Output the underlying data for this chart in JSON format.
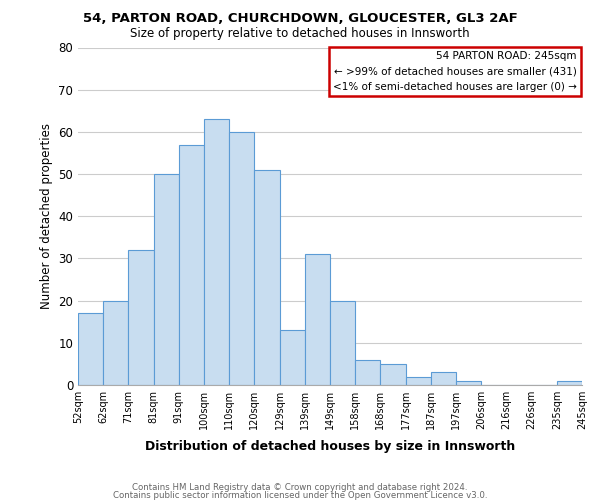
{
  "title_line1": "54, PARTON ROAD, CHURCHDOWN, GLOUCESTER, GL3 2AF",
  "title_line2": "Size of property relative to detached houses in Innsworth",
  "xlabel": "Distribution of detached houses by size in Innsworth",
  "ylabel": "Number of detached properties",
  "bin_labels": [
    "52sqm",
    "62sqm",
    "71sqm",
    "81sqm",
    "91sqm",
    "100sqm",
    "110sqm",
    "120sqm",
    "129sqm",
    "139sqm",
    "149sqm",
    "158sqm",
    "168sqm",
    "177sqm",
    "187sqm",
    "197sqm",
    "206sqm",
    "216sqm",
    "226sqm",
    "235sqm",
    "245sqm"
  ],
  "bar_values": [
    17,
    20,
    32,
    50,
    57,
    63,
    60,
    51,
    13,
    31,
    20,
    6,
    5,
    2,
    3,
    1,
    0,
    0,
    0,
    1
  ],
  "bar_color": "#c8ddf0",
  "bar_edge_color": "#5b9bd5",
  "ylim": [
    0,
    80
  ],
  "yticks": [
    0,
    10,
    20,
    30,
    40,
    50,
    60,
    70,
    80
  ],
  "legend_title": "54 PARTON ROAD: 245sqm",
  "legend_line1": "← >99% of detached houses are smaller (431)",
  "legend_line2": "<1% of semi-detached houses are larger (0) →",
  "legend_box_color": "#ffffff",
  "legend_box_edge_color": "#cc0000",
  "footer_line1": "Contains HM Land Registry data © Crown copyright and database right 2024.",
  "footer_line2": "Contains public sector information licensed under the Open Government Licence v3.0.",
  "background_color": "#ffffff",
  "grid_color": "#cccccc"
}
